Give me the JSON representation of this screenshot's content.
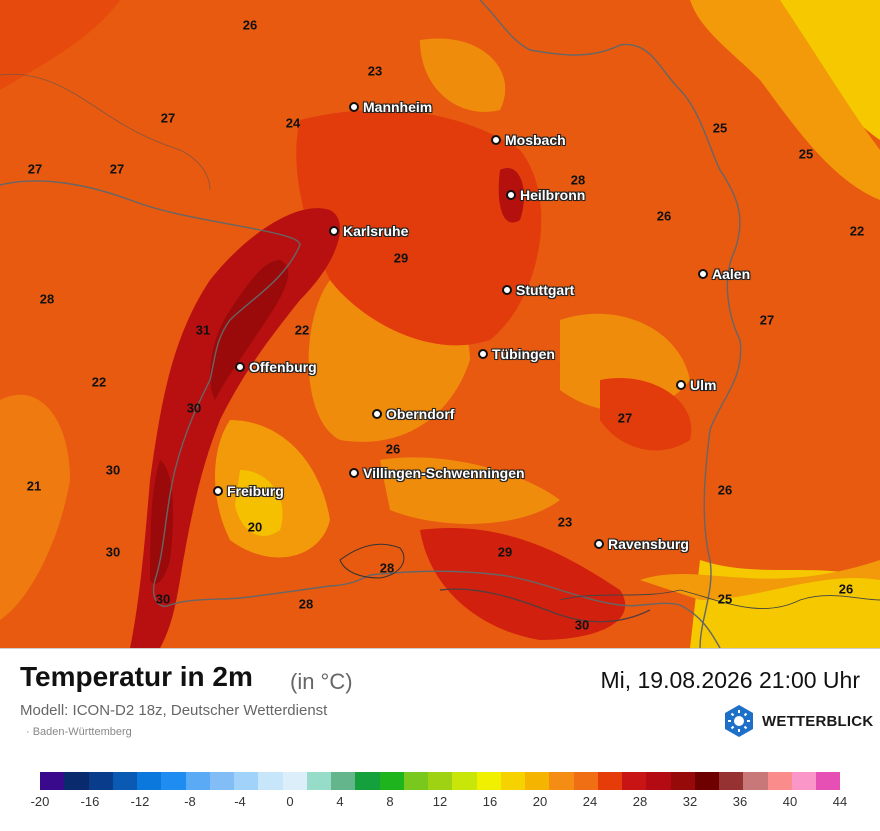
{
  "map": {
    "cities": [
      {
        "name": "Mannheim"
      },
      {
        "name": "Mosbach"
      },
      {
        "name": "Heilbronn"
      },
      {
        "name": "Karlsruhe"
      },
      {
        "name": "Aalen"
      },
      {
        "name": "Stuttgart"
      },
      {
        "name": "Tübingen"
      },
      {
        "name": "Offenburg"
      },
      {
        "name": "Ulm"
      },
      {
        "name": "Oberndorf"
      },
      {
        "name": "Villingen-Schwenningen"
      },
      {
        "name": "Freiburg"
      },
      {
        "name": "Ravensburg"
      }
    ],
    "values": [
      "26",
      "23",
      "27",
      "24",
      "25",
      "25",
      "27",
      "27",
      "28",
      "26",
      "22",
      "28",
      "29",
      "27",
      "31",
      "22",
      "22",
      "30",
      "27",
      "30",
      "26",
      "21",
      "26",
      "20",
      "23",
      "30",
      "29",
      "28",
      "25",
      "26",
      "30",
      "28",
      "30"
    ]
  },
  "legend": {
    "title": "Temperatur in 2m",
    "unit": "(in °C)",
    "datetime": "Mi, 19.08.2026 21:00 Uhr",
    "model": "Modell: ICON-D2 18z, Deutscher Wetterdienst",
    "region": "· Baden-Württemberg",
    "brand": "WETTERBLICK",
    "ticks": [
      "-20",
      "-16",
      "-12",
      "-8",
      "-4",
      "0",
      "4",
      "8",
      "12",
      "16",
      "20",
      "24",
      "28",
      "32",
      "36",
      "40",
      "44"
    ],
    "colors": [
      "#3a0a8c",
      "#0a2a6e",
      "#0a3c8c",
      "#0a5ab4",
      "#0a78dc",
      "#1e8cf0",
      "#5aaaf5",
      "#82bef5",
      "#a0d2fa",
      "#c8e6fa",
      "#dceefa",
      "#96dcc8",
      "#64b48c",
      "#14a03c",
      "#1eb41e",
      "#78c81e",
      "#a0d214",
      "#c8e60a",
      "#f0f000",
      "#f5d200",
      "#f5b400",
      "#f58c14",
      "#f06e14",
      "#e63c0a",
      "#c81414",
      "#b40a14",
      "#960a0a",
      "#6e0000",
      "#963232",
      "#c87878",
      "#fa8c8c",
      "#fa96c8",
      "#e650b4"
    ]
  }
}
